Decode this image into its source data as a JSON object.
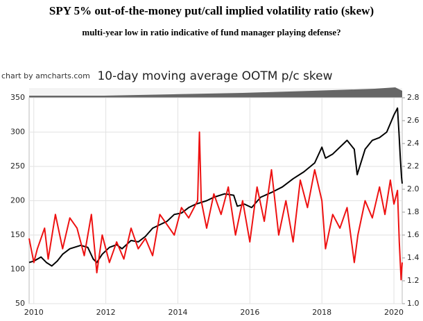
{
  "chart_data": {
    "type": "line",
    "title": "SPY 5% out-of-the-money put/call implied volatility ratio (skew)",
    "subtitle": "multi-year low in ratio indicative of fund manager playing defense?",
    "chart_title": "10-day moving average OOTM p/c skew",
    "credit": "chart by amcharts.com",
    "grid": true,
    "xlim": [
      2009.87,
      2020.23
    ],
    "xticks": [
      2010,
      2012,
      2014,
      2016,
      2018,
      2020
    ],
    "ylim": [
      50,
      350
    ],
    "yticks": [
      50,
      100,
      150,
      200,
      250,
      300,
      350
    ],
    "y2lim": [
      1.0,
      2.8
    ],
    "y2ticks": [
      {
        "value": 1.0,
        "label": "1.0"
      },
      1.2,
      1.4,
      1.6,
      1.8,
      {
        "value": 2.0,
        "label": "2.0"
      },
      2.2,
      2.4,
      2.6,
      2.8
    ],
    "series": [
      {
        "color": "#000000",
        "axis": "y",
        "x": [
          2009.87,
          2010.0,
          2010.2,
          2010.35,
          2010.5,
          2010.65,
          2010.8,
          2011.0,
          2011.3,
          2011.5,
          2011.65,
          2011.75,
          2011.9,
          2012.1,
          2012.3,
          2012.45,
          2012.7,
          2012.9,
          2013.1,
          2013.3,
          2013.5,
          2013.7,
          2013.9,
          2014.1,
          2014.3,
          2014.5,
          2014.8,
          2015.0,
          2015.3,
          2015.55,
          2015.65,
          2015.85,
          2016.05,
          2016.3,
          2016.6,
          2016.9,
          2017.2,
          2017.5,
          2017.8,
          2018.0,
          2018.1,
          2018.3,
          2018.7,
          2018.9,
          2018.98,
          2019.2,
          2019.4,
          2019.6,
          2019.8,
          2020.0,
          2020.1,
          2020.14,
          2020.18,
          2020.21,
          2020.23
        ],
        "values": [
          110,
          112,
          118,
          110,
          105,
          112,
          122,
          130,
          135,
          132,
          115,
          110,
          122,
          132,
          136,
          130,
          142,
          140,
          148,
          160,
          165,
          170,
          180,
          182,
          190,
          195,
          200,
          205,
          210,
          208,
          192,
          195,
          190,
          205,
          212,
          220,
          232,
          242,
          255,
          278,
          262,
          268,
          288,
          275,
          238,
          275,
          288,
          292,
          300,
          325,
          335,
          300,
          260,
          235,
          225
        ]
      },
      {
        "color": "#ee1111",
        "axis": "y2",
        "x": [
          2009.87,
          2010.0,
          2010.1,
          2010.3,
          2010.4,
          2010.6,
          2010.8,
          2011.0,
          2011.2,
          2011.4,
          2011.6,
          2011.75,
          2011.9,
          2012.1,
          2012.3,
          2012.5,
          2012.7,
          2012.9,
          2013.1,
          2013.3,
          2013.5,
          2013.7,
          2013.9,
          2014.1,
          2014.3,
          2014.55,
          2014.6,
          2014.65,
          2014.8,
          2015.0,
          2015.2,
          2015.4,
          2015.6,
          2015.8,
          2016.0,
          2016.2,
          2016.4,
          2016.6,
          2016.8,
          2017.0,
          2017.2,
          2017.4,
          2017.6,
          2017.8,
          2018.0,
          2018.1,
          2018.3,
          2018.5,
          2018.7,
          2018.9,
          2019.0,
          2019.2,
          2019.4,
          2019.6,
          2019.75,
          2019.9,
          2020.0,
          2020.1,
          2020.15,
          2020.2,
          2020.23
        ],
        "values": [
          1.57,
          1.36,
          1.48,
          1.66,
          1.39,
          1.78,
          1.48,
          1.75,
          1.66,
          1.42,
          1.78,
          1.27,
          1.6,
          1.36,
          1.54,
          1.39,
          1.66,
          1.48,
          1.57,
          1.42,
          1.78,
          1.69,
          1.6,
          1.84,
          1.75,
          1.9,
          2.5,
          1.9,
          1.66,
          1.96,
          1.78,
          2.02,
          1.6,
          1.9,
          1.54,
          2.02,
          1.72,
          2.17,
          1.6,
          1.9,
          1.54,
          2.08,
          1.84,
          2.17,
          1.9,
          1.48,
          1.78,
          1.66,
          1.84,
          1.36,
          1.6,
          1.9,
          1.75,
          2.02,
          1.78,
          2.08,
          1.87,
          1.99,
          1.54,
          1.21,
          1.36
        ]
      }
    ]
  }
}
